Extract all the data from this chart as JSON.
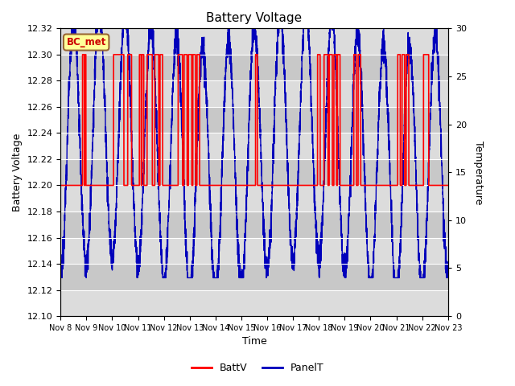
{
  "title": "Battery Voltage",
  "xlabel": "Time",
  "ylabel_left": "Battery Voltage",
  "ylabel_right": "Temperature",
  "ylim_left": [
    12.1,
    12.32
  ],
  "ylim_right": [
    0,
    30
  ],
  "yticks_left": [
    12.1,
    12.12,
    12.14,
    12.16,
    12.18,
    12.2,
    12.22,
    12.24,
    12.26,
    12.28,
    12.3,
    12.32
  ],
  "yticks_right": [
    0,
    5,
    10,
    15,
    20,
    25,
    30
  ],
  "xtick_labels": [
    "Nov 8",
    "Nov 9",
    "Nov 10",
    "Nov 11",
    "Nov 12",
    "Nov 13",
    "Nov 14",
    "Nov 15",
    "Nov 16",
    "Nov 17",
    "Nov 18",
    "Nov 19",
    "Nov 20",
    "Nov 21",
    "Nov 22",
    "Nov 23"
  ],
  "batt_color": "#FF0000",
  "panel_color": "#0000BB",
  "bg_light": "#DCDCDC",
  "bg_dark": "#C8C8C8",
  "legend_label_batt": "BattV",
  "legend_label_panel": "PanelT",
  "annotation_text": "BC_met",
  "annotation_color": "#CC0000",
  "annotation_bg": "#FFFF99",
  "annotation_border": "#996633",
  "num_days": 15,
  "base_voltage": 12.2,
  "spike_voltage": 12.3,
  "temp_min": 4,
  "temp_max": 30,
  "volt_min": 12.1,
  "volt_max": 12.32
}
